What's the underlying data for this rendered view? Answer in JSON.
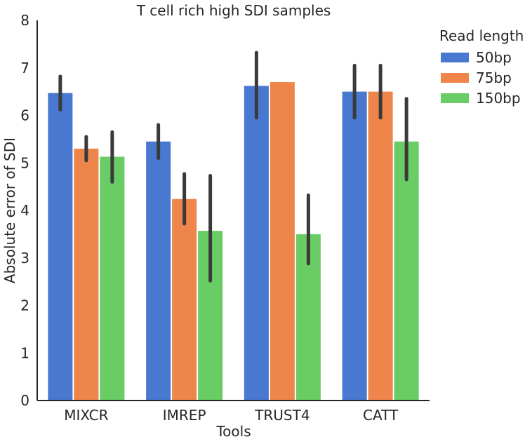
{
  "chart_data": {
    "type": "bar",
    "title": "T cell rich high SDI samples",
    "xlabel": "Tools",
    "ylabel": "Absolute error of SDI",
    "categories": [
      "MIXCR",
      "IMREP",
      "TRUST4",
      "CATT"
    ],
    "ylim": [
      0,
      8
    ],
    "yticks": [
      "0",
      "1",
      "2",
      "3",
      "4",
      "5",
      "6",
      "7",
      "8"
    ],
    "legend": {
      "title": "Read length",
      "position": "top-right, outside plot"
    },
    "grid": false,
    "series": [
      {
        "name": "50bp",
        "color": "#4878d0",
        "values": [
          6.47,
          5.45,
          6.62,
          6.5
        ],
        "error_low": [
          6.12,
          5.1,
          5.95,
          5.95
        ],
        "error_high": [
          6.82,
          5.8,
          7.32,
          7.05
        ]
      },
      {
        "name": "75bp",
        "color": "#ee854a",
        "values": [
          5.3,
          4.24,
          6.7,
          6.5
        ],
        "error_low": [
          5.05,
          3.72,
          null,
          5.95
        ],
        "error_high": [
          5.55,
          4.77,
          null,
          7.05
        ]
      },
      {
        "name": "150bp",
        "color": "#6acc64",
        "values": [
          5.13,
          3.57,
          3.5,
          5.45
        ],
        "error_low": [
          4.6,
          2.52,
          2.88,
          4.65
        ],
        "error_high": [
          5.65,
          4.73,
          4.32,
          6.35
        ]
      }
    ]
  }
}
